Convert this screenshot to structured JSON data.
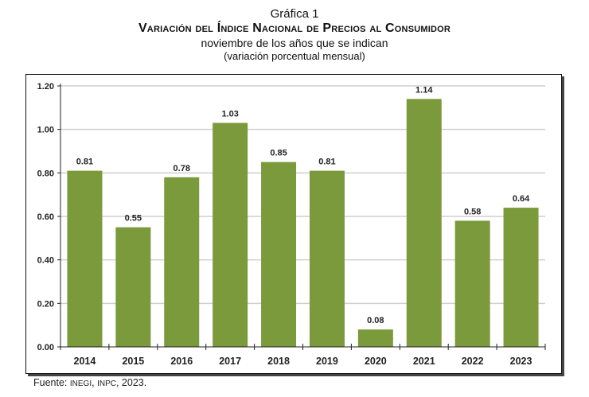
{
  "chart_data": {
    "type": "bar",
    "title": "Gráfica 1",
    "subtitle": "Variación del Índice Nacional de Precios al Consumidor",
    "subtitle2": "noviembre de los años que se indican",
    "ylabel": "(variación porcentual mensual)",
    "categories": [
      "2014",
      "2015",
      "2016",
      "2017",
      "2018",
      "2019",
      "2020",
      "2021",
      "2022",
      "2023"
    ],
    "values": [
      0.81,
      0.55,
      0.78,
      1.03,
      0.85,
      0.81,
      0.08,
      1.14,
      0.58,
      0.64
    ],
    "value_labels": [
      "0.81",
      "0.55",
      "0.78",
      "1.03",
      "0.85",
      "0.81",
      "0.08",
      "1.14",
      "0.58",
      "0.64"
    ],
    "yticks": [
      "0.00",
      "0.20",
      "0.40",
      "0.60",
      "0.80",
      "1.00",
      "1.20"
    ],
    "ylim": [
      0,
      1.2
    ],
    "grid": true,
    "bar_color": "#7a9a3c",
    "grid_color": "#cfcfcf"
  },
  "source": {
    "label": "Fuente:",
    "org1": "INEGI",
    "org2": "INPC",
    "year": "2023."
  }
}
